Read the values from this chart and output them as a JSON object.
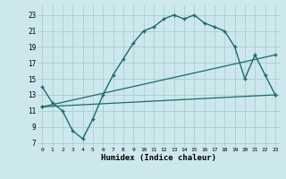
{
  "xlabel": "Humidex (Indice chaleur)",
  "background_color": "#cde8ec",
  "grid_color": "#aacdd4",
  "line_color": "#1a6b6b",
  "xlim": [
    -0.5,
    23.5
  ],
  "ylim": [
    6.5,
    24.2
  ],
  "xticks": [
    0,
    1,
    2,
    3,
    4,
    5,
    6,
    7,
    8,
    9,
    10,
    11,
    12,
    13,
    14,
    15,
    16,
    17,
    18,
    19,
    20,
    21,
    22,
    23
  ],
  "yticks": [
    7,
    9,
    11,
    13,
    15,
    17,
    19,
    21,
    23
  ],
  "line1_x": [
    0,
    1,
    2,
    3,
    4,
    5,
    6,
    7,
    8,
    9,
    10,
    11,
    12,
    13,
    14,
    15,
    16,
    17,
    18,
    19,
    20,
    21,
    22,
    23
  ],
  "line1_y": [
    14,
    12,
    11,
    8.5,
    7.5,
    10,
    13,
    15.5,
    17.5,
    19.5,
    21,
    21.5,
    22.5,
    23,
    22.5,
    23,
    22,
    21.5,
    21,
    19,
    15,
    18,
    15.5,
    13
  ],
  "line2_x": [
    0,
    23
  ],
  "line2_y": [
    11.5,
    18
  ],
  "line3_x": [
    0,
    23
  ],
  "line3_y": [
    11.5,
    13
  ]
}
